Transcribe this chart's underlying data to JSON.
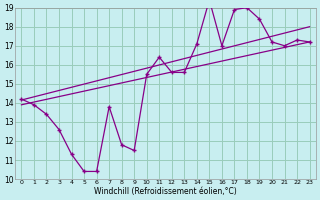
{
  "xlabel": "Windchill (Refroidissement éolien,°C)",
  "bg_color": "#c8eef0",
  "line_color": "#880088",
  "grid_color": "#99ccbb",
  "xlim": [
    -0.5,
    23.5
  ],
  "ylim": [
    10,
    19
  ],
  "xticks": [
    0,
    1,
    2,
    3,
    4,
    5,
    6,
    7,
    8,
    9,
    10,
    11,
    12,
    13,
    14,
    15,
    16,
    17,
    18,
    19,
    20,
    21,
    22,
    23
  ],
  "yticks": [
    10,
    11,
    12,
    13,
    14,
    15,
    16,
    17,
    18,
    19
  ],
  "series1_x": [
    0,
    1,
    2,
    3,
    4,
    5,
    6,
    7,
    8,
    9,
    10,
    11,
    12,
    13,
    14,
    15,
    16,
    17,
    18,
    19,
    20,
    21,
    22,
    23
  ],
  "series1_y": [
    14.2,
    13.9,
    13.4,
    12.6,
    11.3,
    10.4,
    10.4,
    13.8,
    11.8,
    11.5,
    15.5,
    16.4,
    15.6,
    15.6,
    17.1,
    19.4,
    17.0,
    18.9,
    19.0,
    18.4,
    17.2,
    17.0,
    17.3,
    17.2
  ],
  "series2_x": [
    0,
    23
  ],
  "series2_y": [
    13.9,
    17.2
  ],
  "series3_x": [
    0,
    23
  ],
  "series3_y": [
    14.15,
    18.0
  ]
}
